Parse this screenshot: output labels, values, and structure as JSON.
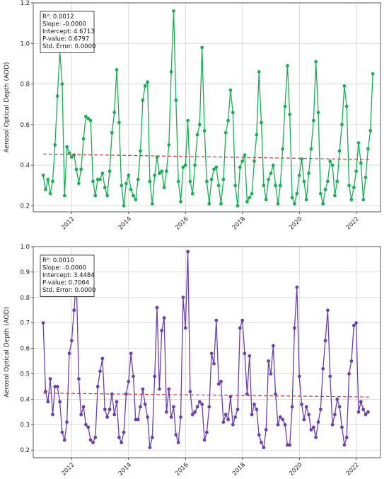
{
  "chart_data": [
    {
      "type": "line",
      "ylabel": "Aerosol Optical Depth (AOD)",
      "xlabel": "",
      "xticks": [
        "2012",
        "2014",
        "2016",
        "2018",
        "2020",
        "2022"
      ],
      "yticks": [
        "0.2",
        "0.4",
        "0.6",
        "0.8",
        "1.0",
        "1.2"
      ],
      "xlim": [
        2010.65,
        2022.85
      ],
      "ylim": [
        0.17,
        1.2
      ],
      "grid": true,
      "colors": {
        "series": "#1aaf55",
        "trend": "#e03030"
      },
      "series": [
        {
          "x0": 2011.0,
          "step": 0.0833,
          "values": [
            0.35,
            0.28,
            0.33,
            0.26,
            0.32,
            0.5,
            0.74,
            0.96,
            0.8,
            0.25,
            0.49,
            0.46,
            0.44,
            0.45,
            0.38,
            0.31,
            0.38,
            0.53,
            0.64,
            0.63,
            0.62,
            0.32,
            0.25,
            0.33,
            0.33,
            0.36,
            0.29,
            0.25,
            0.37,
            0.56,
            0.66,
            0.87,
            0.61,
            0.3,
            0.2,
            0.31,
            0.35,
            0.28,
            0.25,
            0.23,
            0.33,
            0.47,
            0.72,
            0.79,
            0.81,
            0.32,
            0.21,
            0.35,
            0.44,
            0.36,
            0.37,
            0.29,
            0.37,
            0.5,
            0.86,
            1.16,
            0.72,
            0.32,
            0.22,
            0.39,
            0.4,
            0.62,
            0.32,
            0.26,
            0.4,
            0.55,
            0.6,
            0.98,
            0.57,
            0.32,
            0.21,
            0.33,
            0.38,
            0.39,
            0.3,
            0.21,
            0.33,
            0.56,
            0.62,
            0.77,
            0.66,
            0.3,
            0.2,
            0.39,
            0.42,
            0.45,
            0.22,
            0.24,
            0.26,
            0.42,
            0.55,
            0.86,
            0.61,
            0.3,
            0.23,
            0.33,
            0.36,
            0.4,
            0.3,
            0.21,
            0.3,
            0.48,
            0.69,
            0.89,
            0.65,
            0.24,
            0.21,
            0.26,
            0.35,
            0.43,
            0.32,
            0.23,
            0.36,
            0.48,
            0.62,
            0.91,
            0.66,
            0.26,
            0.21,
            0.28,
            0.32,
            0.42,
            0.4,
            0.25,
            0.32,
            0.47,
            0.6,
            0.79,
            0.69,
            0.3,
            0.23,
            0.29,
            0.37,
            0.51,
            0.41,
            0.23,
            0.34,
            0.48,
            0.57,
            0.85
          ]
        }
      ],
      "trend": {
        "x": [
          2011.0,
          2022.5
        ],
        "y": [
          0.455,
          0.428
        ]
      },
      "annotation": [
        "R²: 0.0012",
        "Slope: -0.0000",
        "Intercept: 4.6713",
        "P-value: 0.6797",
        "Std. Error: 0.0000"
      ]
    },
    {
      "type": "line",
      "ylabel": "Aerosol Optical Depth (AOD)",
      "xlabel": "",
      "xticks": [
        "2012",
        "2014",
        "2016",
        "2018",
        "2020",
        "2022"
      ],
      "yticks": [
        "0.2",
        "0.3",
        "0.4",
        "0.5",
        "0.6",
        "0.7",
        "0.8",
        "0.9",
        "1.0"
      ],
      "xlim": [
        2010.65,
        2022.85
      ],
      "ylim": [
        0.17,
        1.0
      ],
      "grid": true,
      "colors": {
        "series": "#6a40b0",
        "trend": "#e03030"
      },
      "series": [
        {
          "x0": 2011.0,
          "step": 0.0833,
          "values": [
            0.7,
            0.43,
            0.39,
            0.48,
            0.34,
            0.45,
            0.45,
            0.39,
            0.27,
            0.24,
            0.31,
            0.58,
            0.63,
            0.75,
            0.87,
            0.48,
            0.34,
            0.37,
            0.3,
            0.29,
            0.24,
            0.23,
            0.25,
            0.45,
            0.51,
            0.56,
            0.36,
            0.33,
            0.36,
            0.42,
            0.34,
            0.39,
            0.25,
            0.23,
            0.27,
            0.42,
            0.47,
            0.58,
            0.49,
            0.32,
            0.32,
            0.37,
            0.44,
            0.38,
            0.33,
            0.21,
            0.25,
            0.49,
            0.76,
            0.44,
            0.67,
            0.72,
            0.35,
            0.44,
            0.33,
            0.37,
            0.26,
            0.23,
            0.33,
            0.8,
            0.68,
            0.98,
            0.43,
            0.34,
            0.35,
            0.37,
            0.39,
            0.38,
            0.24,
            0.27,
            0.37,
            0.58,
            0.54,
            0.71,
            0.46,
            0.47,
            0.31,
            0.34,
            0.32,
            0.41,
            0.3,
            0.33,
            0.36,
            0.68,
            0.71,
            0.58,
            0.42,
            0.57,
            0.34,
            0.38,
            0.36,
            0.26,
            0.23,
            0.21,
            0.28,
            0.55,
            0.5,
            0.61,
            0.42,
            0.3,
            0.33,
            0.32,
            0.3,
            0.22,
            0.22,
            0.37,
            0.68,
            0.84,
            0.49,
            0.38,
            0.32,
            0.37,
            0.34,
            0.28,
            0.29,
            0.25,
            0.31,
            0.36,
            0.52,
            0.63,
            0.75,
            0.49,
            0.3,
            0.34,
            0.4,
            0.37,
            0.29,
            0.22,
            0.25,
            0.5,
            0.55,
            0.69,
            0.7,
            0.35,
            0.39,
            0.36,
            0.34,
            0.35
          ]
        }
      ],
      "trend": {
        "x": [
          2011.0,
          2022.5
        ],
        "y": [
          0.424,
          0.409
        ]
      },
      "annotation": [
        "R²: 0.0010",
        "Slope: -0.0000",
        "Intercept: 3.4484",
        "P-value: 0.7064",
        "Std. Error: 0.0000"
      ]
    }
  ]
}
